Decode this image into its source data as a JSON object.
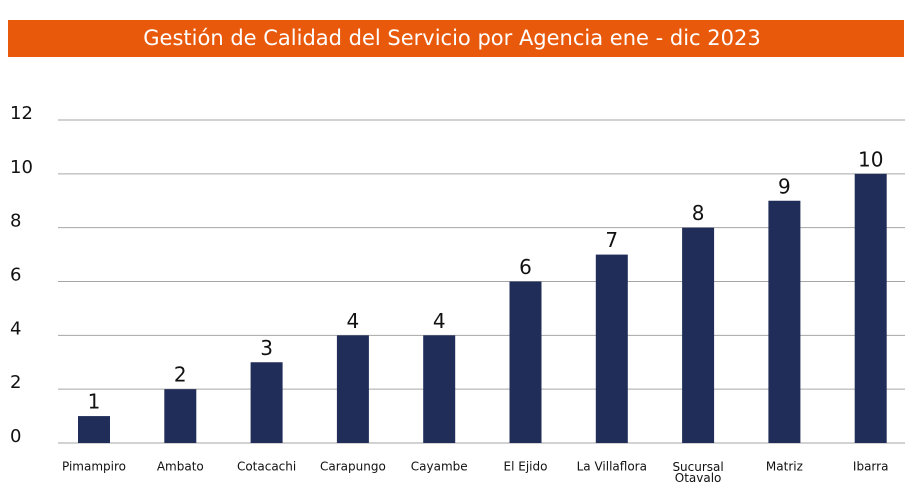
{
  "chart_data": {
    "type": "bar",
    "title": "Gestión de Calidad del Servicio por Agencia ene - dic 2023",
    "categories": [
      "Pimampiro",
      "Ambato",
      "Cotacachi",
      "Carapungo",
      "Cayambe",
      "El Ejido",
      "La Villaflora",
      "Sucursal Otavalo",
      "Matriz",
      "Ibarra"
    ],
    "values": [
      1,
      2,
      3,
      4,
      4,
      6,
      7,
      8,
      9,
      10
    ],
    "color": "#212d59",
    "ylim": [
      0,
      12
    ],
    "yticks": [
      0,
      2,
      4,
      6,
      8,
      10,
      12
    ],
    "grid": true
  }
}
